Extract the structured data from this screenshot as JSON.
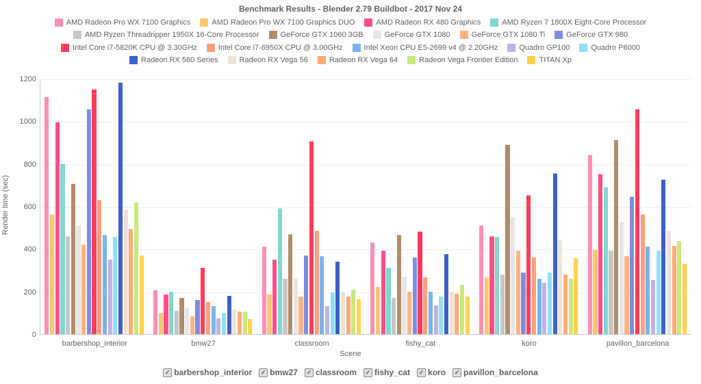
{
  "type": "bar",
  "title": "Benchmark Results - Blender 2.79 Buildbot - 2017 Nov 24",
  "xlabel": "Scene",
  "ylabel": "Render time (sec)",
  "title_fontsize": 12,
  "label_fontsize": 11,
  "tick_fontsize": 11,
  "background_color": "#ffffff",
  "grid_color": "#eeeeee",
  "axis_color": "#cccccc",
  "text_color": "#606060",
  "ylim": [
    0,
    1200
  ],
  "ytick_step": 200,
  "bar_width_ratio": 0.8,
  "categories": [
    "barbershop_interior",
    "bmw27",
    "classroom",
    "fishy_cat",
    "koro",
    "pavillon_barcelona"
  ],
  "series": [
    {
      "label": "AMD Radeon Pro WX 7100 Graphics",
      "color": "#ff8eb4",
      "values": [
        1115,
        205,
        410,
        430,
        510,
        840
      ]
    },
    {
      "label": "AMD Radeon Pro WX 7100 Graphics DUO",
      "color": "#ffc56b",
      "values": [
        560,
        100,
        185,
        220,
        265,
        395
      ]
    },
    {
      "label": "AMD Radeon RX 480 Graphics",
      "color": "#ff4d88",
      "values": [
        995,
        185,
        350,
        390,
        460,
        750
      ]
    },
    {
      "label": "AMD Ryzen 7 1800X Eight-Core Processor",
      "color": "#7fd8cf",
      "values": [
        800,
        200,
        590,
        310,
        455,
        690
      ]
    },
    {
      "label": "AMD Ryzen Threadripper 1950X 16-Core Processor",
      "color": "#c6c6c6",
      "values": [
        460,
        110,
        260,
        170,
        280,
        390
      ]
    },
    {
      "label": "GeForce GTX 1060 3GB",
      "color": "#b28b6b",
      "values": [
        705,
        170,
        470,
        465,
        890,
        910
      ]
    },
    {
      "label": "GeForce GTX 1080",
      "color": "#e6e6e6",
      "values": [
        510,
        125,
        260,
        270,
        550,
        525
      ]
    },
    {
      "label": "GeForce GTX 1080 Ti",
      "color": "#ffb380",
      "values": [
        420,
        85,
        175,
        200,
        390,
        365
      ]
    },
    {
      "label": "GeForce GTX 980",
      "color": "#7e8ce0",
      "values": [
        1055,
        160,
        370,
        360,
        290,
        645
      ]
    },
    {
      "label": "Intel Core i7-5820K CPU @ 3.30GHz",
      "color": "#ff3b5b",
      "values": [
        1150,
        310,
        905,
        480,
        650,
        1055
      ]
    },
    {
      "label": "Intel Core i7-6950X CPU @ 3.00GHz",
      "color": "#ff9f7a",
      "values": [
        630,
        150,
        485,
        265,
        360,
        560
      ]
    },
    {
      "label": "Intel Xeon CPU E5-2699 v4 @ 2.20GHz",
      "color": "#78b4f2",
      "values": [
        465,
        130,
        365,
        200,
        260,
        410
      ]
    },
    {
      "label": "Quadro GP100",
      "color": "#bfb2e6",
      "values": [
        350,
        75,
        130,
        135,
        240,
        255
      ]
    },
    {
      "label": "Quadro P6000",
      "color": "#8fdffa",
      "values": [
        455,
        100,
        195,
        175,
        290,
        390
      ]
    },
    {
      "label": "Radeon RX 580 Series",
      "color": "#3e5fc9",
      "values": [
        1180,
        180,
        340,
        375,
        755,
        725
      ]
    },
    {
      "label": "Radeon RX Vega 56",
      "color": "#ece3d6",
      "values": [
        585,
        115,
        200,
        200,
        440,
        485
      ]
    },
    {
      "label": "Radeon RX Vega 64",
      "color": "#ffab70",
      "values": [
        495,
        105,
        175,
        190,
        280,
        415
      ]
    },
    {
      "label": "Radeon Vega Frontier Edition",
      "color": "#c9e87a",
      "values": [
        620,
        105,
        210,
        230,
        260,
        435
      ]
    },
    {
      "label": "TITAN Xp",
      "color": "#ffd24d",
      "values": [
        370,
        70,
        165,
        175,
        355,
        330
      ]
    }
  ],
  "filters": [
    "barbershop_interior",
    "bmw27",
    "classroom",
    "fishy_cat",
    "koro",
    "pavillon_barcelona"
  ]
}
